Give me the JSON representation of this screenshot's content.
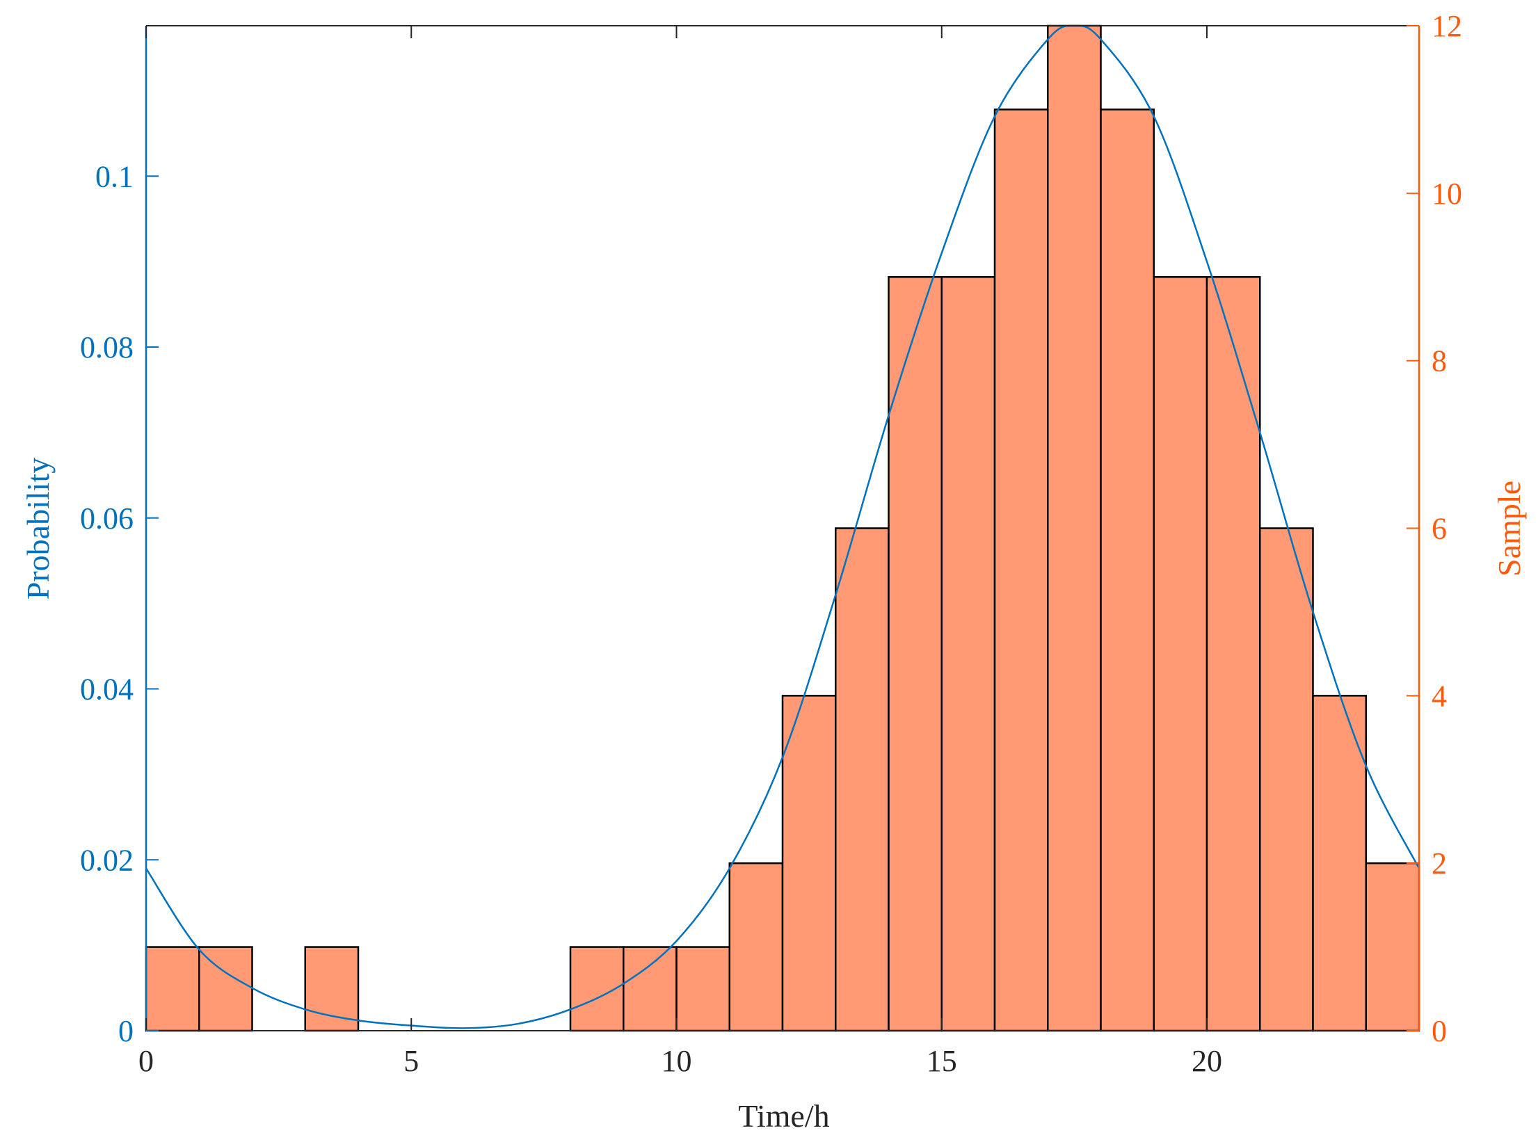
{
  "chart_data": {
    "type": "bar",
    "xlabel": "Time/h",
    "ylabel_left": "Probability",
    "ylabel_right": "Sample",
    "xlim": [
      0,
      24
    ],
    "ylim_left": [
      0,
      0.1176
    ],
    "ylim_right": [
      0,
      12
    ],
    "x_ticks": [
      0,
      5,
      10,
      15,
      20
    ],
    "left_ticks": [
      0,
      0.02,
      0.04,
      0.06,
      0.08,
      0.1
    ],
    "left_tick_labels": [
      "0",
      "0.02",
      "0.04",
      "0.06",
      "0.08",
      "0.1"
    ],
    "right_ticks": [
      0,
      2,
      4,
      6,
      8,
      10,
      12
    ],
    "grid": false,
    "histogram": {
      "name": "Sample",
      "axis": "right",
      "bin_edges": [
        0,
        1,
        2,
        3,
        4,
        5,
        6,
        7,
        8,
        9,
        10,
        11,
        12,
        13,
        14,
        15,
        16,
        17,
        18,
        19,
        20,
        21,
        22,
        23,
        24
      ],
      "counts": [
        1,
        1,
        0,
        1,
        0,
        0,
        0,
        0,
        1,
        1,
        1,
        2,
        4,
        6,
        9,
        9,
        11,
        12,
        11,
        9,
        9,
        6,
        4,
        2
      ]
    },
    "fit_curve": {
      "name": "Probability",
      "axis": "left",
      "x": [
        0,
        1,
        2,
        3,
        4,
        5,
        6,
        7,
        8,
        9,
        10,
        11,
        12,
        13,
        14,
        15,
        16,
        17,
        17.5,
        18,
        19,
        20,
        21,
        22,
        23,
        24
      ],
      "y": [
        0.019,
        0.0095,
        0.005,
        0.0025,
        0.0012,
        0.0006,
        0.0003,
        0.0008,
        0.0025,
        0.0055,
        0.0105,
        0.019,
        0.032,
        0.051,
        0.072,
        0.091,
        0.107,
        0.116,
        0.1176,
        0.116,
        0.107,
        0.09,
        0.07,
        0.049,
        0.031,
        0.019
      ]
    },
    "colors": {
      "left_axis": "#0072BD",
      "right_axis": "#FF5A0A",
      "bar_fill": "#FF9A75",
      "bar_edge": "#000000",
      "curve": "#0072BD"
    }
  }
}
